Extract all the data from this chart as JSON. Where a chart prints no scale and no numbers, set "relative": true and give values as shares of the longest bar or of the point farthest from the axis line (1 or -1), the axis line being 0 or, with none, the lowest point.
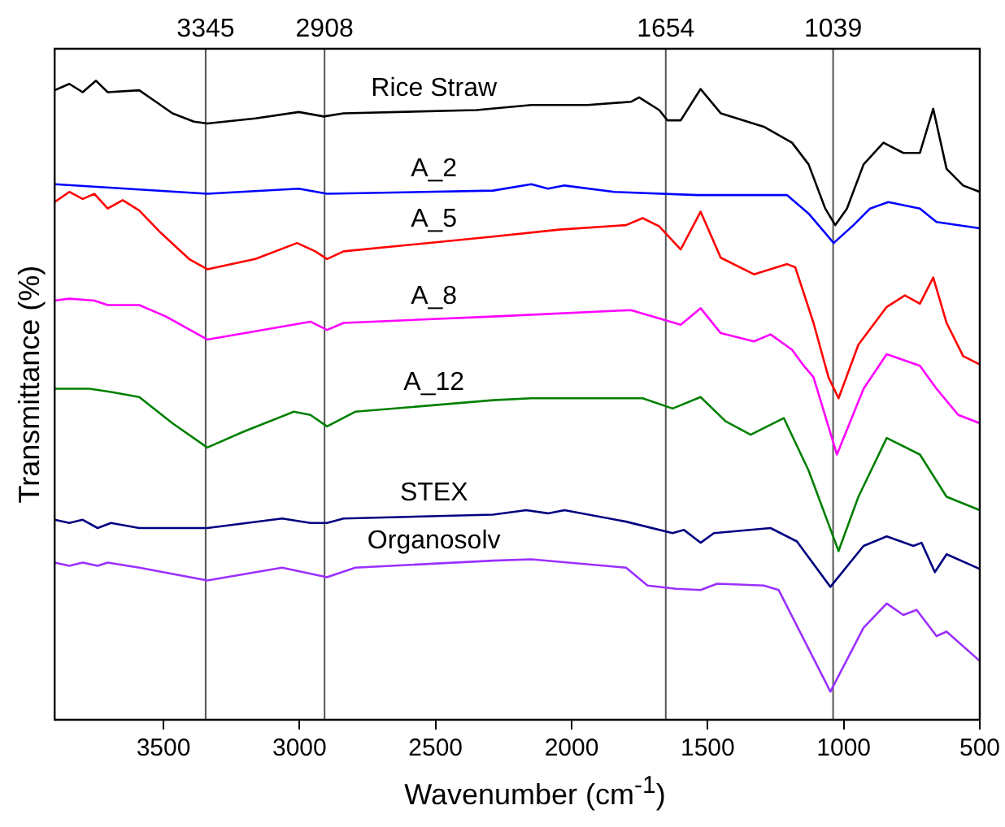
{
  "chart_data": {
    "type": "line",
    "xlabel": "Wavenumber (cm$^{-1}$)",
    "ylabel": "Transmittance (%)",
    "relative": true,
    "xlim": [
      3900,
      500
    ],
    "xticks": [
      3500,
      3000,
      2500,
      2000,
      1500,
      1000,
      500
    ],
    "tick_labels": "x",
    "grid": false,
    "legend": false,
    "marker": "none",
    "ref_lines": [
      {
        "axis": "x",
        "value": 3345,
        "label": "3345",
        "color": "#555555"
      },
      {
        "axis": "x",
        "value": 2908,
        "label": "2908",
        "color": "#555555"
      },
      {
        "axis": "x",
        "value": 1654,
        "label": "1654",
        "color": "#555555"
      },
      {
        "axis": "x",
        "value": 1039,
        "label": "1039",
        "color": "#555555"
      }
    ],
    "series": [
      {
        "name": "Rice Straw",
        "color": "#000000",
        "x": [
          3900,
          3846,
          3797,
          3748,
          3705,
          3589,
          3528,
          3467,
          3388,
          3339,
          3162,
          3003,
          2911,
          2838,
          2350,
          2148,
          1941,
          1782,
          1752,
          1678,
          1648,
          1599,
          1526,
          1452,
          1294,
          1190,
          1129,
          1068,
          1031,
          988,
          927,
          854,
          781,
          720,
          671,
          622,
          561,
          500
        ],
        "values": [
          0.985,
          0.995,
          0.982,
          1.0,
          0.982,
          0.985,
          0.967,
          0.949,
          0.936,
          0.933,
          0.941,
          0.951,
          0.944,
          0.949,
          0.954,
          0.962,
          0.962,
          0.967,
          0.974,
          0.954,
          0.938,
          0.938,
          0.987,
          0.949,
          0.928,
          0.903,
          0.869,
          0.8,
          0.774,
          0.8,
          0.869,
          0.903,
          0.887,
          0.887,
          0.956,
          0.862,
          0.836,
          0.826
        ]
      },
      {
        "name": "A_2",
        "color": "#0000ff",
        "x": [
          3900,
          3339,
          3003,
          2899,
          2289,
          2148,
          2087,
          2026,
          1843,
          1538,
          1208,
          1129,
          1037,
          964,
          903,
          836,
          720,
          659,
          500
        ],
        "values": [
          0.838,
          0.823,
          0.831,
          0.823,
          0.828,
          0.838,
          0.831,
          0.836,
          0.826,
          0.821,
          0.821,
          0.792,
          0.746,
          0.774,
          0.8,
          0.81,
          0.8,
          0.779,
          0.769
        ]
      },
      {
        "name": "A_5",
        "color": "#ff0000",
        "x": [
          3900,
          3846,
          3797,
          3754,
          3705,
          3650,
          3589,
          3510,
          3406,
          3339,
          3162,
          3009,
          2942,
          2899,
          2838,
          2289,
          2045,
          1800,
          1739,
          1678,
          1599,
          1526,
          1452,
          1330,
          1208,
          1178,
          1111,
          1056,
          1019,
          946,
          842,
          775,
          720,
          671,
          622,
          561,
          500
        ],
        "values": [
          0.81,
          0.826,
          0.815,
          0.823,
          0.8,
          0.813,
          0.797,
          0.762,
          0.721,
          0.705,
          0.721,
          0.746,
          0.733,
          0.721,
          0.733,
          0.756,
          0.767,
          0.774,
          0.785,
          0.772,
          0.736,
          0.795,
          0.723,
          0.697,
          0.713,
          0.708,
          0.621,
          0.536,
          0.503,
          0.587,
          0.646,
          0.664,
          0.651,
          0.692,
          0.621,
          0.569,
          0.556
        ]
      },
      {
        "name": "A_8",
        "color": "#ff00ff",
        "x": [
          3900,
          3846,
          3754,
          3705,
          3589,
          3491,
          3339,
          3162,
          2960,
          2899,
          2838,
          2289,
          1782,
          1599,
          1526,
          1452,
          1330,
          1269,
          1190,
          1147,
          1111,
          1025,
          927,
          842,
          720,
          659,
          579,
          500
        ],
        "values": [
          0.656,
          0.659,
          0.656,
          0.649,
          0.649,
          0.631,
          0.595,
          0.608,
          0.623,
          0.61,
          0.621,
          0.631,
          0.641,
          0.618,
          0.644,
          0.605,
          0.592,
          0.603,
          0.579,
          0.554,
          0.536,
          0.415,
          0.518,
          0.572,
          0.554,
          0.518,
          0.477,
          0.464
        ]
      },
      {
        "name": "A_12",
        "color": "#008000",
        "x": [
          3900,
          3772,
          3693,
          3589,
          3467,
          3339,
          3205,
          3021,
          2960,
          2899,
          2795,
          2289,
          2148,
          2002,
          1739,
          1629,
          1526,
          1434,
          1342,
          1220,
          1129,
          1019,
          946,
          842,
          720,
          622,
          500
        ],
        "values": [
          0.518,
          0.518,
          0.513,
          0.505,
          0.464,
          0.426,
          0.451,
          0.482,
          0.477,
          0.459,
          0.482,
          0.5,
          0.503,
          0.503,
          0.503,
          0.487,
          0.505,
          0.467,
          0.446,
          0.472,
          0.39,
          0.264,
          0.349,
          0.441,
          0.415,
          0.349,
          0.328
        ]
      },
      {
        "name": "STEX",
        "color": "#000080",
        "x": [
          3900,
          3846,
          3797,
          3742,
          3693,
          3589,
          3339,
          3064,
          2960,
          2899,
          2838,
          2289,
          2167,
          2087,
          2026,
          1800,
          1629,
          1587,
          1526,
          1477,
          1269,
          1172,
          1049,
          927,
          842,
          744,
          714,
          665,
          622,
          500
        ],
        "values": [
          0.313,
          0.308,
          0.313,
          0.3,
          0.308,
          0.3,
          0.3,
          0.315,
          0.308,
          0.308,
          0.315,
          0.321,
          0.328,
          0.323,
          0.328,
          0.31,
          0.292,
          0.297,
          0.277,
          0.292,
          0.3,
          0.279,
          0.208,
          0.272,
          0.287,
          0.272,
          0.277,
          0.231,
          0.259,
          0.236
        ]
      },
      {
        "name": "Organosolv",
        "color": "#9b30ff",
        "x": [
          3900,
          3846,
          3797,
          3742,
          3705,
          3589,
          3339,
          3064,
          2899,
          2795,
          2289,
          2148,
          1800,
          1721,
          1617,
          1526,
          1465,
          1294,
          1239,
          1049,
          927,
          842,
          781,
          732,
          659,
          622,
          500
        ],
        "values": [
          0.246,
          0.241,
          0.246,
          0.241,
          0.246,
          0.238,
          0.218,
          0.238,
          0.223,
          0.238,
          0.249,
          0.251,
          0.238,
          0.21,
          0.205,
          0.203,
          0.213,
          0.21,
          0.203,
          0.044,
          0.144,
          0.182,
          0.164,
          0.172,
          0.131,
          0.138,
          0.092
        ]
      }
    ]
  }
}
